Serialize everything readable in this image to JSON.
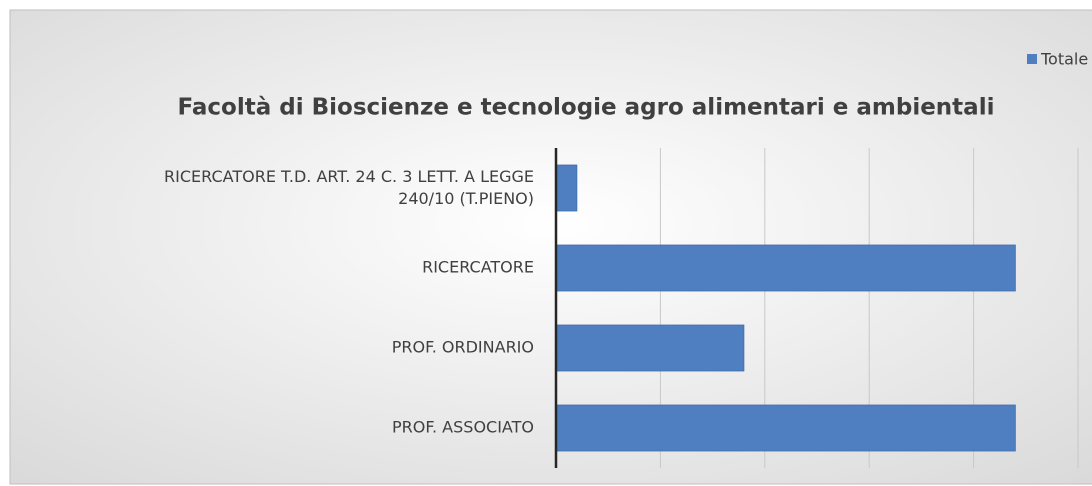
{
  "chart_data": {
    "type": "bar",
    "orientation": "horizontal",
    "title": "Facoltà di Bioscienze e tecnologie agro alimentari e ambientali",
    "categories": [
      "RICERCATORE T.D. ART. 24 C. 3 LETT. A LEGGE 240/10 (T.PIENO)",
      "RICERCATORE",
      "PROF. ORDINARIO",
      "PROF. ASSOCIATO"
    ],
    "series": [
      {
        "name": "Totale",
        "color": "#4f7fc0",
        "values": [
          1,
          22,
          9,
          22
        ]
      }
    ],
    "xlim": [
      0,
      25
    ],
    "xticks": [
      0,
      5,
      10,
      15,
      20,
      25
    ],
    "grid": true,
    "legend": "top-right"
  }
}
